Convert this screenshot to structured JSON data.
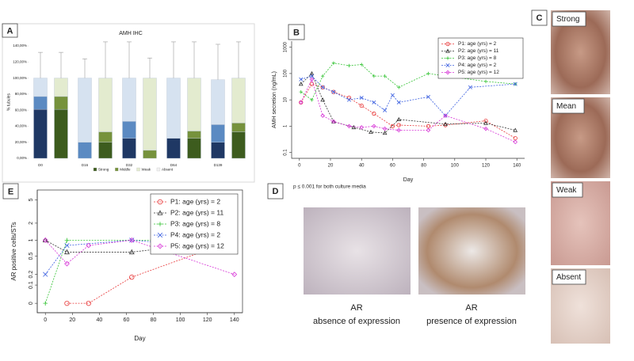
{
  "chart_data": [
    {
      "panel": "A",
      "type": "bar",
      "stacked": true,
      "title": "AMH IHC",
      "y_label": "% tubules",
      "categories": [
        "D0",
        null,
        "D16",
        null,
        "D32",
        null,
        "D64",
        null,
        "D139",
        null
      ],
      "series": [
        {
          "name": "Strong",
          "colors": [
            "#1f3864",
            "#3d5c1e"
          ],
          "values": [
            61,
            61,
            0,
            20,
            25,
            0,
            25,
            25,
            20,
            33
          ]
        },
        {
          "name": "Middle",
          "colors": [
            "#5b8ac2",
            "#76923c"
          ],
          "values": [
            16,
            16,
            20,
            13,
            21,
            10,
            0,
            9,
            22,
            11
          ]
        },
        {
          "name": "Weak",
          "colors": [
            "#d6e2f0",
            "#e3ebcf"
          ],
          "values": [
            23,
            23,
            80,
            67,
            54,
            90,
            75,
            66,
            56,
            56
          ],
          "errors": [
            32,
            32,
            24,
            45,
            45,
            25,
            45,
            45,
            44,
            45
          ]
        },
        {
          "name": "Absent",
          "colors": [
            "#ffffff",
            "#f2f2f2"
          ],
          "values": [
            0,
            0,
            0,
            0,
            0,
            0,
            0,
            0,
            0,
            0
          ]
        }
      ],
      "ylim": [
        0,
        140
      ],
      "yticks": [
        {
          "value": 0,
          "label": "0,00%"
        },
        {
          "value": 20,
          "label": "20,00%"
        },
        {
          "value": 40,
          "label": "40,00%"
        },
        {
          "value": 60,
          "label": "60,00%"
        },
        {
          "value": 80,
          "label": "80,00%"
        },
        {
          "value": 100,
          "label": "100,00%"
        },
        {
          "value": 120,
          "label": "120,00%"
        },
        {
          "value": 140,
          "label": "140,00%"
        }
      ],
      "legend": "bottom"
    },
    {
      "panel": "B",
      "type": "line",
      "y_label": "AMH secretion (ng/mL)",
      "x_label": "Day",
      "yscale": "log",
      "line_style": "dashed",
      "annotation": "p ≤ 0.001 for both culture media",
      "xlim": [
        -5,
        145
      ],
      "xticks": [
        0,
        20,
        40,
        60,
        80,
        100,
        120,
        140
      ],
      "ylim": [
        0.06,
        1700
      ],
      "yticks": [
        0.1,
        1,
        10,
        100,
        1000
      ],
      "legend": "upper right",
      "series": [
        {
          "name": "P1: age (yrs) = 2",
          "color": "#e8393a",
          "marker": "circle",
          "x": [
            1,
            8,
            15,
            22,
            32,
            40,
            48,
            60,
            64,
            83,
            94,
            120,
            139
          ],
          "values": [
            8,
            40,
            30,
            20,
            12,
            6,
            3,
            1,
            1.1,
            1.0,
            1.1,
            1.6,
            0.35
          ]
        },
        {
          "name": "P2: age (yrs) = 11",
          "color": "#333333",
          "marker": "triangle",
          "x": [
            1,
            8,
            15,
            22,
            35,
            46,
            55,
            64,
            94,
            120,
            139
          ],
          "values": [
            40,
            100,
            10,
            1.5,
            0.9,
            0.6,
            0.55,
            1.8,
            1.2,
            1.3,
            0.7
          ]
        },
        {
          "name": "P3: age (yrs) = 8",
          "color": "#35c435",
          "marker": "plus",
          "x": [
            1,
            8,
            15,
            22,
            32,
            40,
            48,
            55,
            64,
            83,
            120,
            139
          ],
          "values": [
            20,
            10,
            80,
            250,
            200,
            220,
            80,
            80,
            30,
            100,
            50,
            40
          ]
        },
        {
          "name": "P4: age (yrs) = 2",
          "color": "#3a5fe0",
          "marker": "x",
          "x": [
            1,
            8,
            15,
            22,
            32,
            40,
            48,
            55,
            60,
            64,
            83,
            94,
            110,
            139
          ],
          "values": [
            60,
            80,
            30,
            20,
            10,
            12,
            8,
            4,
            15,
            8,
            13,
            2.5,
            30,
            40
          ]
        },
        {
          "name": "P5: age (yrs) = 12",
          "color": "#d633d6",
          "marker": "diamond",
          "x": [
            1,
            8,
            15,
            22,
            32,
            40,
            48,
            55,
            64,
            83,
            94,
            120,
            139
          ],
          "values": [
            8,
            60,
            2.5,
            1.5,
            1.0,
            0.9,
            1.0,
            0.8,
            0.7,
            0.7,
            2.5,
            0.8,
            0.25
          ]
        }
      ]
    },
    {
      "panel": "E",
      "type": "line",
      "y_label": "AR positive cells/STs",
      "x_label": "Day",
      "yscale": "log",
      "log_offset": 0.1,
      "line_style": "dashed",
      "xlim": [
        -6,
        146
      ],
      "xticks": [
        0,
        20,
        40,
        60,
        80,
        100,
        120,
        140
      ],
      "ylim": [
        -0.03,
        7.3
      ],
      "yticks": [
        0,
        0.1,
        0.2,
        0.5,
        1,
        2,
        5
      ],
      "legend": "upper right",
      "series": [
        {
          "name": "P1: age (yrs) = 2",
          "color": "#e8393a",
          "marker": "circle",
          "x": [
            16,
            32,
            64,
            140
          ],
          "values": [
            0,
            0,
            0.17,
            1
          ]
        },
        {
          "name": "P2: age (yrs) = 11",
          "color": "#333333",
          "marker": "triangle",
          "x": [
            0,
            16,
            64,
            140
          ],
          "values": [
            1,
            0.6,
            0.6,
            1
          ]
        },
        {
          "name": "P3: age (yrs) = 8",
          "color": "#35c435",
          "marker": "plus",
          "x": [
            0,
            16,
            140
          ],
          "values": [
            0,
            1,
            1
          ]
        },
        {
          "name": "P4: age (yrs) = 2",
          "color": "#3a5fe0",
          "marker": "x",
          "x": [
            0,
            16,
            64,
            140
          ],
          "values": [
            0.2,
            0.8,
            1,
            0.7
          ]
        },
        {
          "name": "P5: age (yrs) = 12",
          "color": "#d633d6",
          "marker": "diamond",
          "x": [
            0,
            16,
            32,
            64,
            140
          ],
          "values": [
            1,
            0.35,
            0.8,
            1,
            0.2
          ]
        }
      ]
    }
  ],
  "images": [
    {
      "panel": "C",
      "labels": [
        "Strong",
        "Mean",
        "Weak",
        "Absent"
      ]
    },
    {
      "panel": "D",
      "captions": [
        [
          "AR",
          "absence of expression"
        ],
        [
          "AR",
          "presence of expression"
        ]
      ]
    }
  ]
}
